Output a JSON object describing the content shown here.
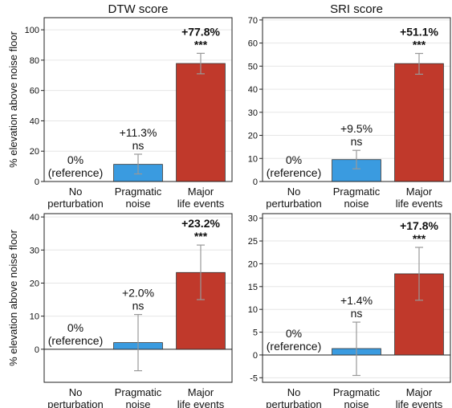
{
  "y_label": "% elevation above noise floor",
  "colors": {
    "no_perturbation": "#3a9be0",
    "pragmatic": "#3a9be0",
    "major": "#c0392b",
    "error_bar": "#999999",
    "grid": "#e6e6e6"
  },
  "chart_data": [
    {
      "type": "bar",
      "title": "DTW score",
      "categories": [
        "No perturbation",
        "Pragmatic noise",
        "Major life events"
      ],
      "category_lines": [
        [
          "No",
          "perturbation"
        ],
        [
          "Pragmatic",
          "noise"
        ],
        [
          "Major",
          "life events"
        ]
      ],
      "values": [
        0,
        11.3,
        77.8
      ],
      "errors": [
        [
          0,
          0
        ],
        [
          5,
          18
        ],
        [
          71,
          84.5
        ]
      ],
      "annotations": [
        [
          "0%",
          "(reference)"
        ],
        [
          "+11.3%",
          "ns"
        ],
        [
          "+77.8%",
          "***"
        ]
      ],
      "annotation_bold": [
        false,
        false,
        true
      ],
      "ylim": [
        0,
        108
      ],
      "yticks": [
        0,
        20,
        40,
        60,
        80,
        100
      ],
      "grid": true
    },
    {
      "type": "bar",
      "title": "SRI score",
      "categories": [
        "No perturbation",
        "Pragmatic noise",
        "Major life events"
      ],
      "category_lines": [
        [
          "No",
          "perturbation"
        ],
        [
          "Pragmatic",
          "noise"
        ],
        [
          "Major",
          "life events"
        ]
      ],
      "values": [
        0,
        9.5,
        51.1
      ],
      "errors": [
        [
          0,
          0
        ],
        [
          5.5,
          13.5
        ],
        [
          46.5,
          55.5
        ]
      ],
      "annotations": [
        [
          "0%",
          "(reference)"
        ],
        [
          "+9.5%",
          "ns"
        ],
        [
          "+51.1%",
          "***"
        ]
      ],
      "annotation_bold": [
        false,
        false,
        true
      ],
      "ylim": [
        0,
        71
      ],
      "yticks": [
        0,
        10,
        20,
        30,
        40,
        50,
        60,
        70
      ],
      "grid": true
    },
    {
      "type": "bar",
      "title": "",
      "categories": [
        "No perturbation",
        "Pragmatic noise",
        "Major life events"
      ],
      "category_lines": [
        [
          "No",
          "perturbation"
        ],
        [
          "Pragmatic",
          "noise"
        ],
        [
          "Major",
          "life events"
        ]
      ],
      "values": [
        0,
        2.0,
        23.2
      ],
      "errors": [
        [
          0,
          0
        ],
        [
          -6.5,
          10.5
        ],
        [
          15,
          31.5
        ]
      ],
      "annotations": [
        [
          "0%",
          "(reference)"
        ],
        [
          "+2.0%",
          "ns"
        ],
        [
          "+23.2%",
          "***"
        ]
      ],
      "annotation_bold": [
        false,
        false,
        true
      ],
      "ylim": [
        -10,
        41
      ],
      "yticks": [
        0,
        10,
        20,
        30,
        40
      ],
      "grid": true
    },
    {
      "type": "bar",
      "title": "",
      "categories": [
        "No perturbation",
        "Pragmatic noise",
        "Major life events"
      ],
      "category_lines": [
        [
          "No",
          "perturbation"
        ],
        [
          "Pragmatic",
          "noise"
        ],
        [
          "Major",
          "life events"
        ]
      ],
      "values": [
        0,
        1.4,
        17.8
      ],
      "errors": [
        [
          0,
          0
        ],
        [
          -4.5,
          7.2
        ],
        [
          12,
          23.6
        ]
      ],
      "annotations": [
        [
          "0%",
          "(reference)"
        ],
        [
          "+1.4%",
          "ns"
        ],
        [
          "+17.8%",
          "***"
        ]
      ],
      "annotation_bold": [
        false,
        false,
        true
      ],
      "ylim": [
        -6,
        31
      ],
      "yticks": [
        -5,
        0,
        5,
        10,
        15,
        20,
        25,
        30
      ],
      "grid": true
    }
  ]
}
